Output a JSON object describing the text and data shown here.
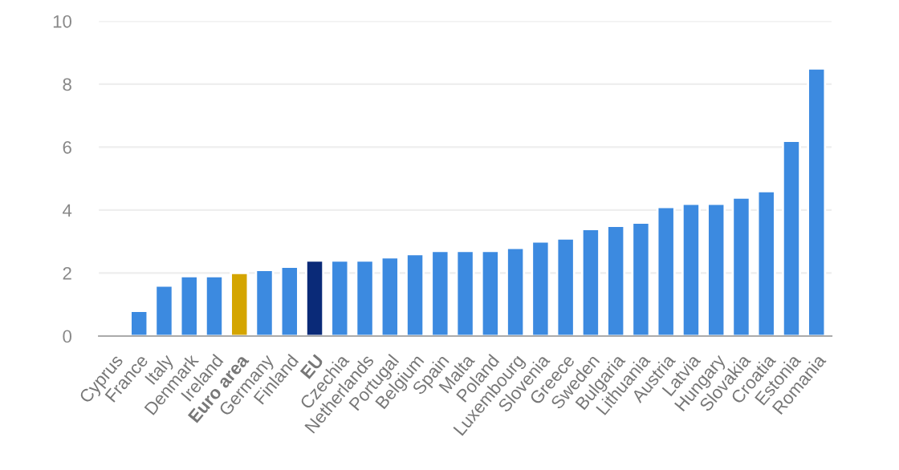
{
  "chart_data": {
    "type": "bar",
    "categories": [
      "Cyprus",
      "France",
      "Italy",
      "Denmark",
      "Ireland",
      "Euro area",
      "Germany",
      "Finland",
      "EU",
      "Czechia",
      "Netherlands",
      "Portugal",
      "Belgium",
      "Spain",
      "Malta",
      "Poland",
      "Luxembourg",
      "Slovenia",
      "Greece",
      "Sweden",
      "Bulgaria",
      "Lithuania",
      "Austria",
      "Latvia",
      "Hungary",
      "Slovakia",
      "Croatia",
      "Estonia",
      "Romania"
    ],
    "values": [
      null,
      0.8,
      1.6,
      1.9,
      1.9,
      2.0,
      2.1,
      2.2,
      2.4,
      2.4,
      2.4,
      2.5,
      2.6,
      2.7,
      2.7,
      2.7,
      2.8,
      3.0,
      3.1,
      3.4,
      3.5,
      3.6,
      4.1,
      4.2,
      4.2,
      4.4,
      4.6,
      6.2,
      8.5
    ],
    "colors": [
      "#3c8ae0",
      "#3c8ae0",
      "#3c8ae0",
      "#3c8ae0",
      "#3c8ae0",
      "#d4a500",
      "#3c8ae0",
      "#3c8ae0",
      "#0a2a78",
      "#3c8ae0",
      "#3c8ae0",
      "#3c8ae0",
      "#3c8ae0",
      "#3c8ae0",
      "#3c8ae0",
      "#3c8ae0",
      "#3c8ae0",
      "#3c8ae0",
      "#3c8ae0",
      "#3c8ae0",
      "#3c8ae0",
      "#3c8ae0",
      "#3c8ae0",
      "#3c8ae0",
      "#3c8ae0",
      "#3c8ae0",
      "#3c8ae0",
      "#3c8ae0",
      "#3c8ae0"
    ],
    "ylim": [
      0,
      10
    ],
    "yticks": [
      0,
      2,
      4,
      6,
      8,
      10
    ],
    "grid": "y",
    "legend": false
  }
}
